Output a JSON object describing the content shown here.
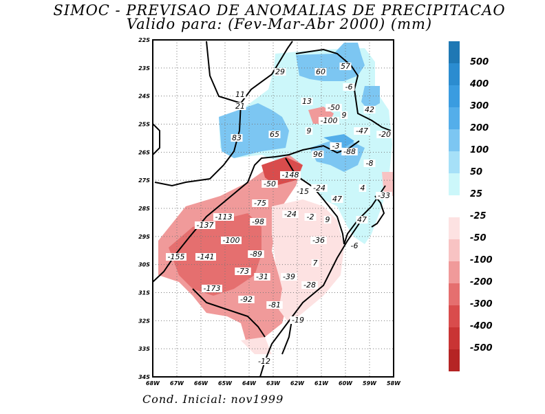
{
  "title_line1": "SIMOC - PREVISAO DE ANOMALIAS DE PRECIPITACAO",
  "title_line2": "Valido para: (Fev-Mar-Abr 2000) (mm)",
  "footer": "Cond. Inicial: nov1999",
  "lat_labels": [
    "22S",
    "23S",
    "24S",
    "25S",
    "26S",
    "27S",
    "28S",
    "29S",
    "30S",
    "31S",
    "32S",
    "33S",
    "34S"
  ],
  "lon_labels": [
    "68W",
    "67W",
    "66W",
    "65W",
    "64W",
    "63W",
    "62W",
    "61W",
    "60W",
    "59W",
    "58W"
  ],
  "legend_positive": [
    {
      "label": "500",
      "color": "#1f78b4"
    },
    {
      "label": "400",
      "color": "#2b8cd0"
    },
    {
      "label": "300",
      "color": "#3a9ce0"
    },
    {
      "label": "200",
      "color": "#54aeea"
    },
    {
      "label": "100",
      "color": "#7cc6f2"
    },
    {
      "label": "50",
      "color": "#a6e0f8"
    },
    {
      "label": "25",
      "color": "#ccf7fa"
    }
  ],
  "legend_negative": [
    {
      "label": "-25",
      "color": "#fde2e2"
    },
    {
      "label": "-50",
      "color": "#f8c3c3"
    },
    {
      "label": "-100",
      "color": "#f09a9a"
    },
    {
      "label": "-200",
      "color": "#e56f6f"
    },
    {
      "label": "-300",
      "color": "#d94c4c"
    },
    {
      "label": "-400",
      "color": "#c93434"
    },
    {
      "label": "-500",
      "color": "#b52424"
    }
  ],
  "contour_labels": [
    "29",
    "60",
    "57",
    "-6",
    "13",
    "-50",
    "11",
    "21",
    "9",
    "-100",
    "42",
    "-47",
    "-20",
    "65",
    "9",
    "83",
    "-3",
    "-88",
    "96",
    "-8",
    "-148",
    "-50",
    "-24",
    "-15",
    "4",
    "-33",
    "47",
    "-75",
    "-24",
    "-2",
    "9",
    "47",
    "-113",
    "-98",
    "-137",
    "-36",
    "-100",
    "-6",
    "-89",
    "-155",
    "-141",
    "7",
    "-73",
    "-31",
    "-39",
    "-28",
    "-173",
    "-92",
    "-81",
    "-19",
    "-12"
  ]
}
